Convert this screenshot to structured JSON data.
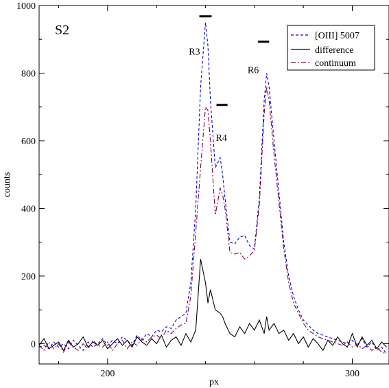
{
  "chart_data": {
    "type": "line",
    "panel_label": "S2",
    "xlabel": "px",
    "ylabel": "counts",
    "xlim": [
      172,
      315
    ],
    "ylim": [
      -60,
      1000
    ],
    "xticks": [
      200,
      300
    ],
    "yticks": [
      0,
      200,
      400,
      600,
      800,
      1000
    ],
    "legend_position": "top-right",
    "series": [
      {
        "name": "[OIII] 5007",
        "style": "dashed",
        "color": "#0000cc",
        "x": [
          172,
          174,
          176,
          178,
          180,
          182,
          184,
          186,
          188,
          190,
          192,
          194,
          196,
          198,
          200,
          202,
          204,
          206,
          208,
          210,
          212,
          214,
          216,
          218,
          220,
          222,
          224,
          226,
          228,
          230,
          232,
          234,
          236,
          238,
          240,
          241,
          242,
          244,
          246,
          247,
          248,
          250,
          252,
          254,
          256,
          258,
          260,
          262,
          264,
          265,
          266,
          268,
          270,
          272,
          274,
          276,
          278,
          280,
          282,
          284,
          286,
          288,
          290,
          292,
          294,
          296,
          298,
          300,
          302,
          304,
          306,
          308,
          310,
          312,
          314
        ],
        "y": [
          -10,
          -5,
          -15,
          5,
          -10,
          0,
          -15,
          10,
          -5,
          -20,
          5,
          -10,
          0,
          15,
          -5,
          10,
          0,
          20,
          10,
          -5,
          25,
          10,
          30,
          20,
          40,
          35,
          50,
          45,
          70,
          80,
          90,
          180,
          400,
          760,
          950,
          880,
          720,
          520,
          550,
          500,
          430,
          300,
          295,
          315,
          320,
          290,
          280,
          430,
          720,
          800,
          760,
          600,
          450,
          300,
          200,
          140,
          100,
          70,
          55,
          40,
          30,
          25,
          20,
          15,
          10,
          5,
          0,
          10,
          -5,
          15,
          -10,
          5,
          -20,
          -10,
          -30
        ]
      },
      {
        "name": "difference",
        "style": "solid",
        "color": "#000000",
        "x": [
          172,
          174,
          176,
          178,
          180,
          182,
          184,
          186,
          188,
          190,
          192,
          194,
          196,
          198,
          200,
          202,
          204,
          206,
          208,
          210,
          212,
          214,
          216,
          218,
          220,
          222,
          224,
          226,
          228,
          230,
          232,
          234,
          236,
          238,
          240,
          241,
          242,
          244,
          246,
          247,
          248,
          250,
          252,
          254,
          256,
          258,
          260,
          262,
          264,
          265,
          266,
          268,
          270,
          272,
          274,
          276,
          278,
          280,
          282,
          284,
          286,
          288,
          290,
          292,
          294,
          296,
          298,
          300,
          302,
          304,
          306,
          308,
          310,
          312,
          314
        ],
        "y": [
          -5,
          15,
          -15,
          -5,
          5,
          -20,
          10,
          -10,
          0,
          20,
          -10,
          5,
          -5,
          10,
          -15,
          0,
          15,
          -5,
          10,
          -10,
          20,
          5,
          -5,
          15,
          0,
          25,
          -10,
          10,
          20,
          -5,
          30,
          5,
          40,
          250,
          180,
          120,
          160,
          100,
          90,
          80,
          60,
          30,
          20,
          50,
          30,
          60,
          40,
          70,
          30,
          80,
          40,
          60,
          30,
          40,
          10,
          30,
          0,
          20,
          -10,
          15,
          0,
          -20,
          10,
          -5,
          20,
          0,
          -10,
          30,
          -10,
          20,
          -5,
          10,
          -15,
          5,
          -10
        ]
      },
      {
        "name": "continuum",
        "style": "dashdot",
        "color": "#800040",
        "x": [
          172,
          174,
          176,
          178,
          180,
          182,
          184,
          186,
          188,
          190,
          192,
          194,
          196,
          198,
          200,
          202,
          204,
          206,
          208,
          210,
          212,
          214,
          216,
          218,
          220,
          222,
          224,
          226,
          228,
          230,
          232,
          234,
          236,
          238,
          240,
          241,
          242,
          244,
          246,
          247,
          248,
          250,
          252,
          254,
          256,
          258,
          260,
          262,
          264,
          265,
          266,
          268,
          270,
          272,
          274,
          276,
          278,
          280,
          282,
          284,
          286,
          288,
          290,
          292,
          294,
          296,
          298,
          300,
          302,
          304,
          306,
          308,
          310,
          312,
          314
        ],
        "y": [
          -5,
          -20,
          5,
          -15,
          0,
          -25,
          5,
          -10,
          -20,
          0,
          -15,
          10,
          -5,
          -10,
          5,
          -20,
          0,
          10,
          -15,
          5,
          -5,
          15,
          5,
          20,
          25,
          15,
          40,
          30,
          45,
          55,
          60,
          140,
          330,
          520,
          700,
          690,
          600,
          380,
          460,
          440,
          400,
          270,
          265,
          270,
          250,
          260,
          275,
          410,
          680,
          760,
          720,
          560,
          420,
          280,
          180,
          120,
          90,
          60,
          40,
          30,
          20,
          15,
          10,
          5,
          0,
          -5,
          5,
          -10,
          0,
          -15,
          -5,
          -20,
          -10,
          -25,
          -30
        ]
      }
    ],
    "annotations": [
      {
        "text": "R3",
        "x": 235.5,
        "y": 855,
        "bar_x": [
          237.5,
          242.5
        ],
        "bar_y": 968
      },
      {
        "text": "R4",
        "x": 246.5,
        "y": 600,
        "bar_x": [
          244.5,
          249
        ],
        "bar_y": 706
      },
      {
        "text": "R6",
        "x": 259.5,
        "y": 800,
        "bar_x": [
          261.5,
          266
        ],
        "bar_y": 893
      }
    ]
  }
}
